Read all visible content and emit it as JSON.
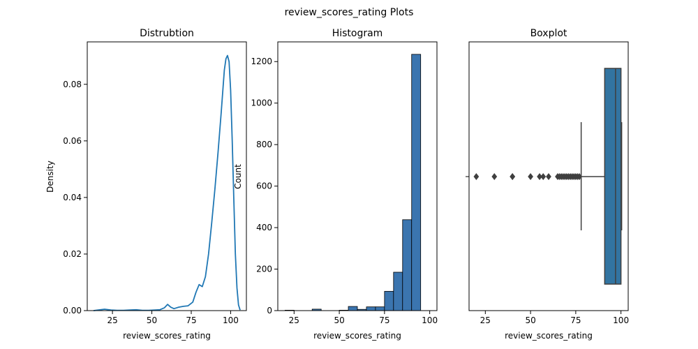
{
  "suptitle": "review_scores_rating Plots",
  "colors": {
    "kde_line": "#1f77b4",
    "hist_fill": "#3b75af",
    "box_fill": "#3274a1",
    "box_edge": "#3f3f3f",
    "axis": "#000000"
  },
  "chart_data": [
    {
      "type": "line",
      "title": "Distrubtion",
      "xlabel": "review_scores_rating",
      "ylabel": "Density",
      "xlim": [
        9,
        110
      ],
      "ylim": [
        0,
        0.095
      ],
      "xticks": [
        25,
        50,
        75,
        100
      ],
      "yticks": [
        0.0,
        0.02,
        0.04,
        0.06,
        0.08
      ],
      "ytick_labels": [
        "0.00",
        "0.02",
        "0.04",
        "0.06",
        "0.08"
      ],
      "series": [
        {
          "x": [
            13,
            16,
            20,
            24,
            28,
            32,
            36,
            40,
            44,
            48,
            52,
            55,
            58,
            60,
            62,
            64,
            67,
            70,
            73,
            76,
            78,
            80,
            82,
            84,
            86,
            88,
            90,
            92,
            94,
            96,
            97,
            98,
            99,
            100,
            101,
            102,
            103,
            104,
            105,
            106
          ],
          "y": [
            0.0,
            0.0002,
            0.0005,
            0.0002,
            0.0001,
            0.0001,
            0.0002,
            0.0003,
            0.0001,
            0.0001,
            0.0002,
            0.0003,
            0.001,
            0.0022,
            0.0012,
            0.0007,
            0.0012,
            0.0015,
            0.0017,
            0.003,
            0.0065,
            0.0092,
            0.0085,
            0.012,
            0.02,
            0.031,
            0.043,
            0.056,
            0.07,
            0.085,
            0.089,
            0.0902,
            0.088,
            0.078,
            0.06,
            0.04,
            0.02,
            0.008,
            0.002,
            0.0002
          ]
        }
      ]
    },
    {
      "type": "bar",
      "title": "Histogram",
      "xlabel": "review_scores_rating",
      "ylabel": "Count",
      "xlim": [
        16,
        104
      ],
      "ylim": [
        0,
        1295
      ],
      "xticks": [
        25,
        50,
        75,
        100
      ],
      "yticks": [
        0,
        200,
        400,
        600,
        800,
        1000,
        1200
      ],
      "bin_edges": [
        20,
        25,
        30,
        35,
        40,
        45,
        50,
        55,
        60,
        65,
        70,
        75,
        80,
        85,
        90,
        95,
        100
      ],
      "values": [
        2,
        0,
        0,
        7,
        0,
        0,
        2,
        20,
        6,
        18,
        18,
        93,
        185,
        438,
        1235,
        0
      ]
    },
    {
      "type": "box",
      "title": "Boxplot",
      "xlabel": "review_scores_rating",
      "xlim": [
        16,
        104
      ],
      "xticks": [
        25,
        50,
        75,
        100
      ],
      "q1": 91,
      "median": 97,
      "q3": 100,
      "whisker_low": 78,
      "whisker_high": 100,
      "outliers": [
        20,
        30,
        40,
        40,
        50,
        55,
        57,
        60,
        65,
        66,
        67,
        68,
        69,
        70,
        71,
        72,
        73,
        74,
        75,
        76,
        77
      ]
    }
  ]
}
